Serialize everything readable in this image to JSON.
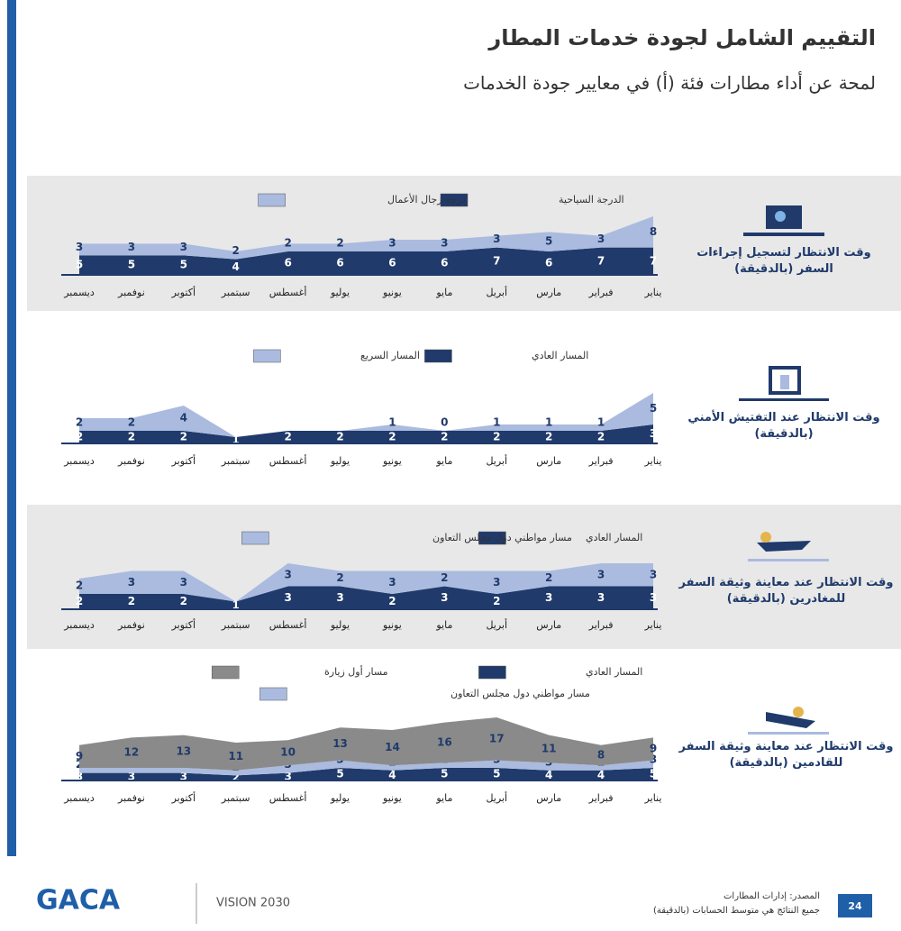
{
  "header": {
    "title": "التقييم الشامل لجودة خدمات المطار",
    "subtitle": "لمحة عن أداء مطارات فئة (أ) في معايير جودة الخدمات"
  },
  "chart_data": [
    {
      "type": "area",
      "stacked": true,
      "title": "وقت الانتظار لتسجيل إجراءات السفر (بالدقيقة)",
      "categories": [
        "يناير",
        "فبراير",
        "مارس",
        "أبريل",
        "مايو",
        "يونيو",
        "يوليو",
        "أغسطس",
        "سبتمبر",
        "أكتوبر",
        "نوفمبر",
        "ديسمبر"
      ],
      "series": [
        {
          "name": "الدرجة السياحية",
          "color": "#1f3a6b",
          "values": [
            7,
            7,
            6,
            7,
            6,
            6,
            6,
            6,
            4,
            5,
            5,
            5
          ]
        },
        {
          "name": "درجة زجال الأعمال",
          "color": "#aabbdf",
          "values": [
            8,
            3,
            5,
            3,
            3,
            3,
            2,
            2,
            2,
            3,
            3,
            3
          ]
        }
      ]
    },
    {
      "type": "area",
      "stacked": true,
      "title": "وقت الانتظار عند التفتيش الأمني (بالدقيقة)",
      "categories": [
        "يناير",
        "فبراير",
        "مارس",
        "أبريل",
        "مايو",
        "يونيو",
        "يوليو",
        "أغسطس",
        "سبتمبر",
        "أكتوبر",
        "نوفمبر",
        "ديسمبر"
      ],
      "series": [
        {
          "name": "المسار العادي",
          "color": "#1f3a6b",
          "values": [
            3,
            2,
            2,
            2,
            2,
            2,
            2,
            2,
            1,
            2,
            2,
            2
          ]
        },
        {
          "name": "المسار السريع",
          "color": "#aabbdf",
          "values": [
            5,
            1,
            1,
            1,
            0,
            1,
            0,
            0,
            0,
            4,
            2,
            2
          ],
          "value_labels": [
            "5",
            "1",
            "1",
            "1",
            "0",
            "1",
            null,
            null,
            null,
            "4",
            "2",
            "2"
          ]
        }
      ]
    },
    {
      "type": "area",
      "stacked": true,
      "title": "وقت الانتظار عند معاينة وثيقة السفر للمغادرين (بالدقيقة)",
      "categories": [
        "يناير",
        "فبراير",
        "مارس",
        "أبريل",
        "مايو",
        "يونيو",
        "يوليو",
        "أغسطس",
        "سبتمبر",
        "أكتوبر",
        "نوفمبر",
        "ديسمبر"
      ],
      "series": [
        {
          "name": "المسار العادي",
          "color": "#1f3a6b",
          "values": [
            3,
            3,
            3,
            2,
            3,
            2,
            3,
            3,
            1,
            2,
            2,
            2
          ]
        },
        {
          "name": "مسار مواطني دول مجلس التعاون",
          "color": "#aabbdf",
          "values": [
            3,
            3,
            2,
            3,
            2,
            3,
            2,
            3,
            0,
            3,
            3,
            2
          ],
          "value_labels": [
            "3",
            "3",
            "2",
            "3",
            "2",
            "3",
            "2",
            "3",
            null,
            "3",
            "3",
            "2"
          ]
        }
      ]
    },
    {
      "type": "area",
      "stacked": true,
      "title": "وقت الانتظار عند معاينة وثيقة السفر للقادمين (بالدقيقة)",
      "categories": [
        "يناير",
        "فبراير",
        "مارس",
        "أبريل",
        "مايو",
        "يونيو",
        "يوليو",
        "أغسطس",
        "سبتمبر",
        "أكتوبر",
        "نوفمبر",
        "ديسمبر"
      ],
      "series": [
        {
          "name": "المسار العادي",
          "color": "#1f3a6b",
          "values": [
            5,
            4,
            4,
            5,
            5,
            4,
            5,
            3,
            2,
            3,
            3,
            3
          ]
        },
        {
          "name": "مسار مواطني دول مجلس التعاون",
          "color": "#aabbdf",
          "values": [
            3,
            2,
            3,
            3,
            2,
            2,
            3,
            3,
            2,
            2,
            2,
            2
          ]
        },
        {
          "name": "مسار أول زيارة",
          "color": "#8a8a8a",
          "values": [
            9,
            8,
            11,
            17,
            16,
            14,
            13,
            10,
            11,
            13,
            12,
            9
          ]
        }
      ]
    }
  ],
  "footer": {
    "source": "المصدر: إدارات المطارات",
    "note": "جميع النتائج هي متوسط الحسابات (بالدقيقة)",
    "page": "24",
    "logo": "GACA",
    "vision": "VISION 2030"
  }
}
